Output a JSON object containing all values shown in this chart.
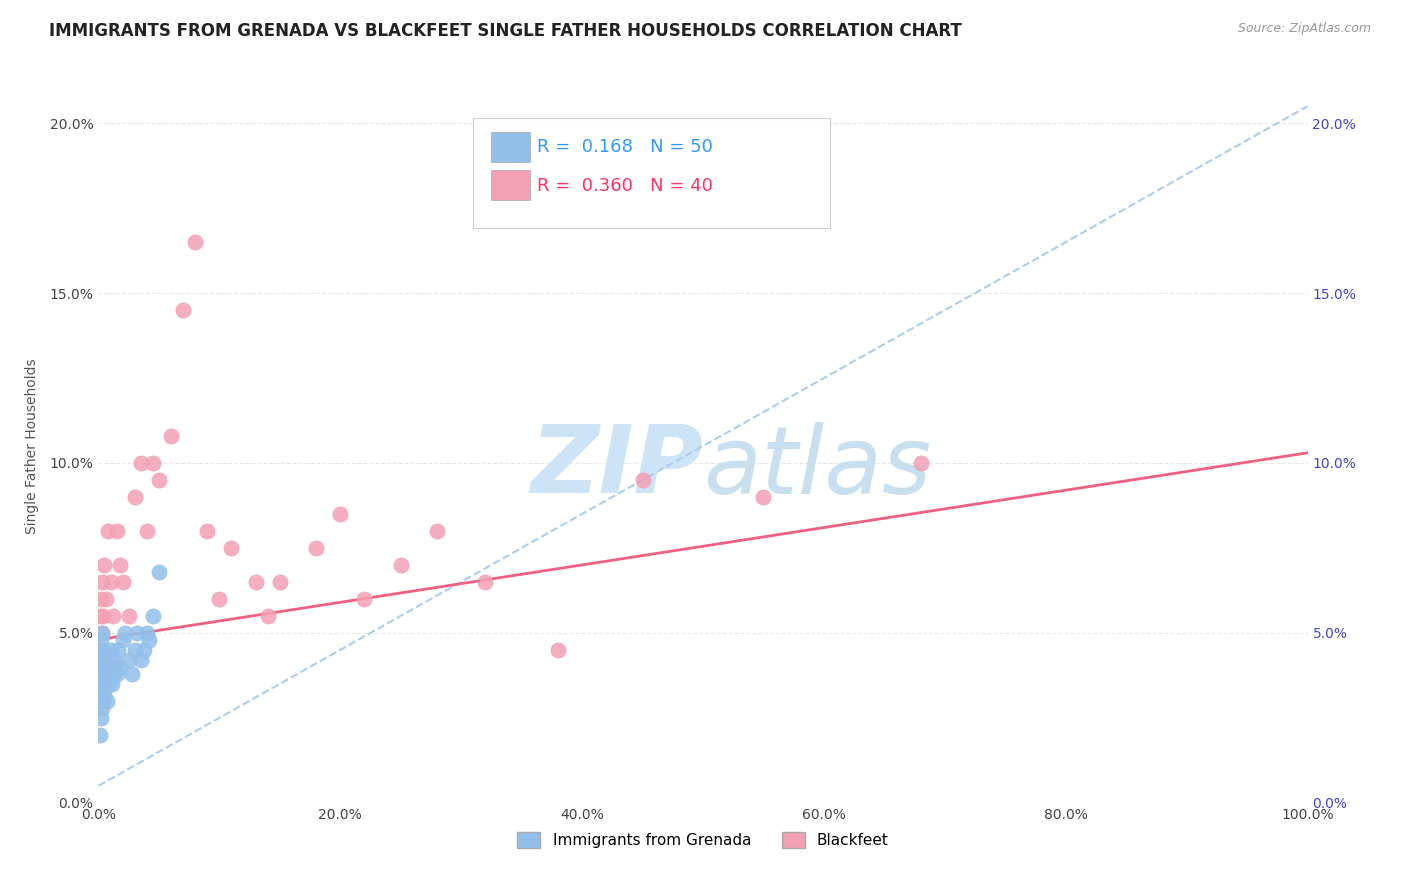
{
  "title": "IMMIGRANTS FROM GRENADA VS BLACKFEET SINGLE FATHER HOUSEHOLDS CORRELATION CHART",
  "source": "Source: ZipAtlas.com",
  "ylabel": "Single Father Households",
  "x_ticklabels": [
    "0.0%",
    "20.0%",
    "40.0%",
    "60.0%",
    "80.0%",
    "100.0%"
  ],
  "y_ticklabels": [
    "0.0%",
    "5.0%",
    "10.0%",
    "15.0%",
    "20.0%"
  ],
  "xlim": [
    0.0,
    1.0
  ],
  "ylim": [
    0.0,
    0.21
  ],
  "legend_r1": "R =  0.168",
  "legend_n1": "N = 50",
  "legend_r2": "R =  0.360",
  "legend_n2": "N = 40",
  "series1_color": "#92c0ea",
  "series2_color": "#f4a0b4",
  "trendline1_color": "#aacfee",
  "trendline2_color": "#f06080",
  "watermark_zip": "ZIP",
  "watermark_atlas": "atlas",
  "watermark_color_zip": "#cce4f5",
  "watermark_color_atlas": "#c8dff0",
  "background_color": "#ffffff",
  "series1_x": [
    0.001,
    0.001,
    0.001,
    0.001,
    0.001,
    0.002,
    0.002,
    0.002,
    0.002,
    0.002,
    0.002,
    0.003,
    0.003,
    0.003,
    0.003,
    0.003,
    0.004,
    0.004,
    0.004,
    0.004,
    0.005,
    0.005,
    0.005,
    0.006,
    0.006,
    0.007,
    0.007,
    0.008,
    0.009,
    0.01,
    0.01,
    0.011,
    0.012,
    0.013,
    0.014,
    0.015,
    0.016,
    0.018,
    0.02,
    0.022,
    0.025,
    0.028,
    0.03,
    0.032,
    0.035,
    0.038,
    0.04,
    0.042,
    0.045,
    0.05
  ],
  "series1_y": [
    0.02,
    0.03,
    0.035,
    0.038,
    0.045,
    0.025,
    0.03,
    0.035,
    0.04,
    0.042,
    0.048,
    0.028,
    0.032,
    0.038,
    0.042,
    0.05,
    0.03,
    0.035,
    0.04,
    0.045,
    0.032,
    0.038,
    0.044,
    0.035,
    0.042,
    0.03,
    0.04,
    0.038,
    0.035,
    0.04,
    0.045,
    0.035,
    0.038,
    0.042,
    0.04,
    0.038,
    0.045,
    0.04,
    0.048,
    0.05,
    0.042,
    0.038,
    0.045,
    0.05,
    0.042,
    0.045,
    0.05,
    0.048,
    0.055,
    0.068
  ],
  "series2_x": [
    0.001,
    0.001,
    0.002,
    0.002,
    0.003,
    0.003,
    0.004,
    0.005,
    0.006,
    0.008,
    0.01,
    0.012,
    0.015,
    0.018,
    0.02,
    0.025,
    0.03,
    0.035,
    0.04,
    0.045,
    0.05,
    0.06,
    0.07,
    0.08,
    0.09,
    0.1,
    0.11,
    0.13,
    0.14,
    0.15,
    0.18,
    0.2,
    0.22,
    0.25,
    0.28,
    0.32,
    0.38,
    0.45,
    0.55,
    0.68
  ],
  "series2_y": [
    0.045,
    0.055,
    0.04,
    0.06,
    0.05,
    0.065,
    0.055,
    0.07,
    0.06,
    0.08,
    0.065,
    0.055,
    0.08,
    0.07,
    0.065,
    0.055,
    0.09,
    0.1,
    0.08,
    0.1,
    0.095,
    0.108,
    0.145,
    0.165,
    0.08,
    0.06,
    0.075,
    0.065,
    0.055,
    0.065,
    0.075,
    0.085,
    0.06,
    0.07,
    0.08,
    0.065,
    0.045,
    0.095,
    0.09,
    0.1
  ],
  "trendline1_x_start": 0.0,
  "trendline1_x_end": 1.0,
  "trendline1_y_start": 0.005,
  "trendline1_y_end": 0.205,
  "trendline2_x_start": 0.0,
  "trendline2_x_end": 1.0,
  "trendline2_y_start": 0.048,
  "trendline2_y_end": 0.103,
  "title_fontsize": 12,
  "axis_fontsize": 10,
  "tick_fontsize": 10,
  "legend_fontsize": 13
}
